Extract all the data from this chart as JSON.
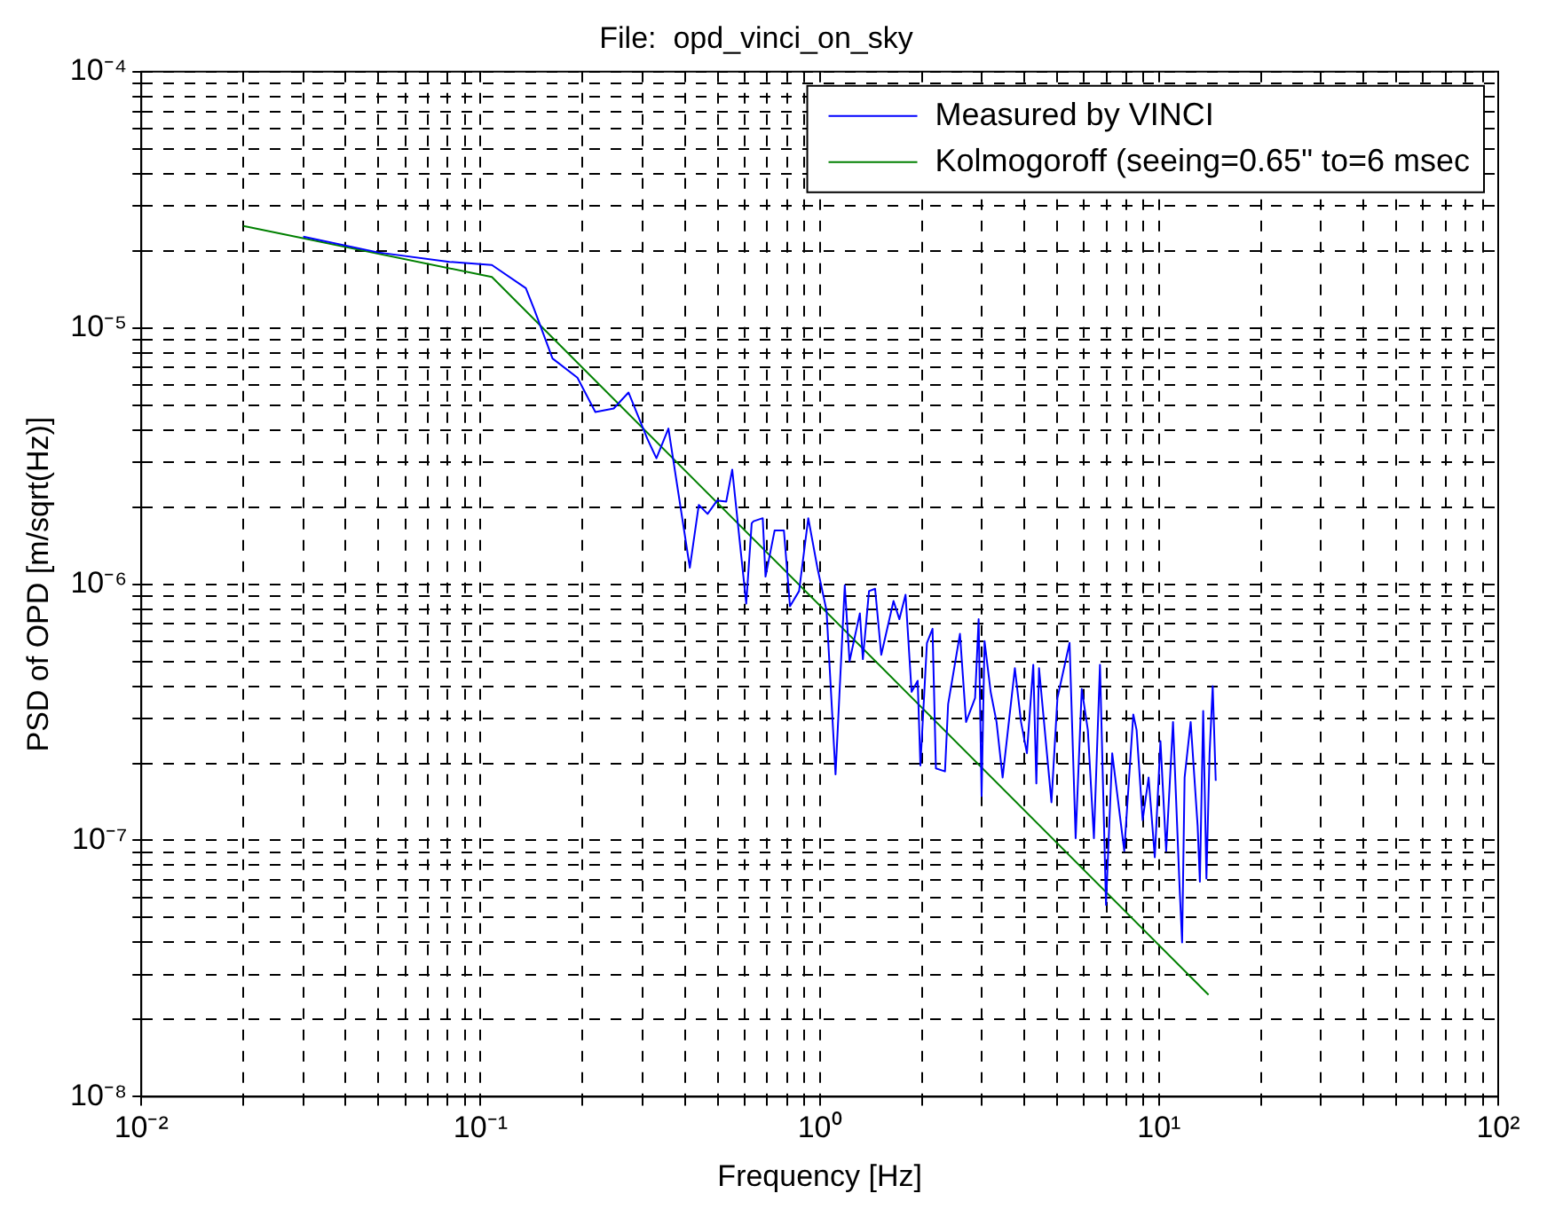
{
  "chart_data": {
    "type": "line",
    "title": "File:  opd_vinci_on_sky",
    "xlabel": "Frequency [Hz]",
    "ylabel": "PSD of OPD [m/sqrt(Hz)]",
    "log": "xy",
    "grid": true,
    "legend": "top right",
    "marker": "none",
    "line_style": "solid",
    "xlim": [
      0.01,
      100
    ],
    "xticks": [
      {
        "value": 0.01,
        "label": "10⁻²"
      },
      {
        "value": 0.1,
        "label": "10⁻¹"
      },
      {
        "value": 1,
        "label": "10⁰"
      },
      {
        "value": 10,
        "label": "10¹"
      },
      {
        "value": 100,
        "label": "10²"
      }
    ],
    "ylim": [
      1e-08,
      0.0001
    ],
    "yticks": [
      {
        "value": 1e-08,
        "label": "10⁻⁸"
      },
      {
        "value": 1e-07,
        "label": "10⁻⁷"
      },
      {
        "value": 1e-06,
        "label": "10⁻⁶"
      },
      {
        "value": 1e-05,
        "label": "10⁻⁵"
      },
      {
        "value": 0.0001,
        "label": "10⁻⁴"
      }
    ],
    "series": [
      {
        "name": "Measured by VINCI",
        "color": "#0000ff",
        "x": [
          0.03,
          0.05,
          0.081,
          0.108,
          0.136,
          0.144,
          0.163,
          0.193,
          0.218,
          0.247,
          0.273,
          0.31,
          0.33,
          0.358,
          0.414,
          0.44,
          0.467,
          0.498,
          0.53,
          0.552,
          0.607,
          0.63,
          0.638,
          0.679,
          0.692,
          0.736,
          0.784,
          0.817,
          0.869,
          0.925,
          0.984,
          1.047,
          1.113,
          1.185,
          1.224,
          1.313,
          1.34,
          1.397,
          1.456,
          1.518,
          1.65,
          1.717,
          1.79,
          1.865,
          1.944,
          1.98,
          2.07,
          2.15,
          2.2,
          2.34,
          2.39,
          2.59,
          2.7,
          2.87,
          2.94,
          3.0,
          3.06,
          3.19,
          3.32,
          3.46,
          3.76,
          3.92,
          4.08,
          4.26,
          4.35,
          4.43,
          4.82,
          5.02,
          5.45,
          5.68,
          5.92,
          6.17,
          6.43,
          6.7,
          6.98,
          7.28,
          7.9,
          8.4,
          8.59,
          8.95,
          9.32,
          9.72,
          10.1,
          10.5,
          11.0,
          11.5,
          11.7,
          11.9,
          12.4,
          13.0,
          13.2,
          13.5,
          13.8,
          14.1,
          14.4,
          14.7
        ],
        "values": [
          2.27e-05,
          1.97e-05,
          1.81e-05,
          1.76e-05,
          1.43e-05,
          1.18e-05,
          7.6e-06,
          6.4e-06,
          4.7e-06,
          4.85e-06,
          5.6e-06,
          3.7e-06,
          3.1e-06,
          4.05e-06,
          1.16e-06,
          2.04e-06,
          1.88e-06,
          2.12e-06,
          2.1e-06,
          2.8e-06,
          8.4e-07,
          1.73e-06,
          1.76e-06,
          1.81e-06,
          1.07e-06,
          1.62e-06,
          1.62e-06,
          8.2e-07,
          9.4e-07,
          1.81e-06,
          1.16e-06,
          7.9e-07,
          1.81e-07,
          9.9e-07,
          5e-07,
          7.7e-07,
          5.1e-07,
          9.4e-07,
          9.6e-07,
          5.3e-07,
          8.6e-07,
          7.3e-07,
          9.1e-07,
          3.8e-07,
          4.2e-07,
          1.96e-07,
          5.9e-07,
          6.7e-07,
          1.91e-07,
          1.86e-07,
          3.4e-07,
          6.4e-07,
          2.9e-07,
          3.6e-07,
          7.3e-07,
          1.49e-07,
          6e-07,
          3.8e-07,
          2.9e-07,
          1.76e-07,
          4.7e-07,
          2.9e-07,
          2.19e-07,
          4.85e-07,
          1.67e-07,
          4.7e-07,
          1.41e-07,
          3.6e-07,
          5.9e-07,
          1.02e-07,
          3.9e-07,
          2.7e-07,
          1.02e-07,
          4.85e-07,
          5.6e-08,
          2.19e-07,
          9.1e-08,
          3.1e-07,
          2.7e-07,
          1.2e-07,
          1.76e-07,
          8.6e-08,
          2.44e-07,
          9.1e-08,
          2.9e-07,
          6.6e-08,
          4e-08,
          1.76e-07,
          2.9e-07,
          1.14e-07,
          6.9e-08,
          3.2e-07,
          7.1e-08,
          2.19e-07,
          4e-07,
          1.71e-07
        ]
      },
      {
        "name": "Kolmogoroff (seeing=0.65\" to=6 msec",
        "color": "#008000",
        "x": [
          0.02,
          0.108,
          14
        ],
        "values": [
          2.5e-05,
          1.58e-05,
          2.5e-08
        ]
      }
    ]
  }
}
